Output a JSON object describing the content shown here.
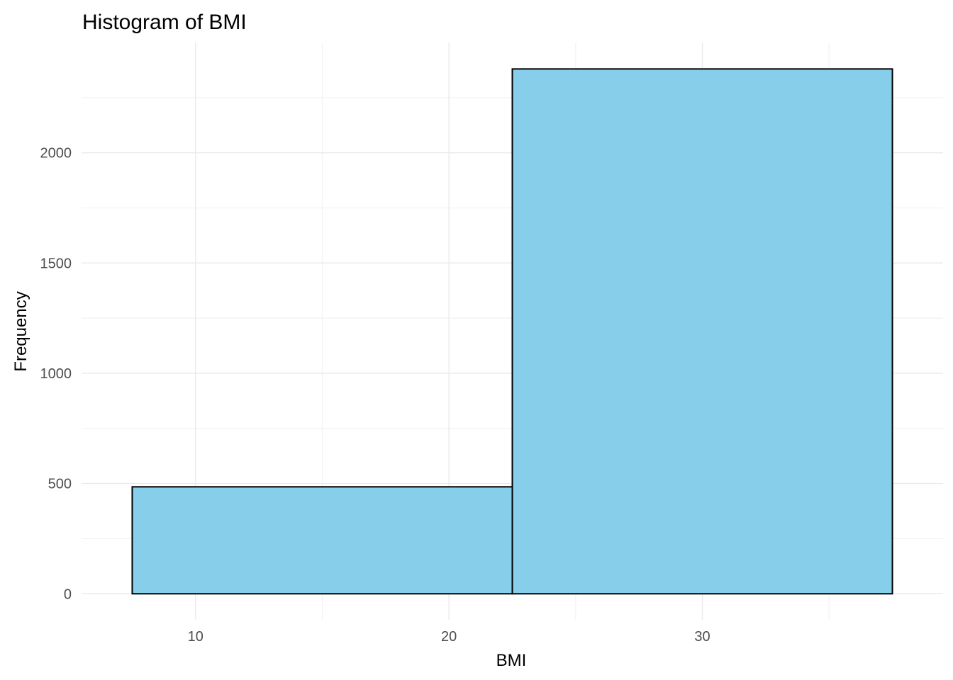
{
  "chart_data": {
    "type": "bar",
    "title": "Histogram of BMI",
    "xlabel": "BMI",
    "ylabel": "Frequency",
    "bins": [
      {
        "x_start": 7.5,
        "x_end": 22.5,
        "count": 485
      },
      {
        "x_start": 22.5,
        "x_end": 37.5,
        "count": 2380
      }
    ],
    "xlim": [
      5.5,
      39.5
    ],
    "ylim": [
      -118,
      2500
    ],
    "x_major_ticks": [
      10,
      20,
      30
    ],
    "x_tick_labels": [
      "10",
      "20",
      "30"
    ],
    "x_minor_ticks": [
      15,
      25,
      35
    ],
    "y_major_ticks": [
      0,
      500,
      1000,
      1500,
      2000
    ],
    "y_tick_labels": [
      "0",
      "500",
      "1000",
      "1500",
      "2000"
    ],
    "y_minor_ticks": [
      250,
      750,
      1250,
      1750,
      2250
    ],
    "grid": true,
    "legend": "none",
    "colors": {
      "bar_fill": "#87CEEB",
      "bar_outline": "#000000",
      "grid_major": "#ebebeb",
      "grid_minor": "#f2f2f2",
      "tick_text": "#4d4d4d",
      "title_text": "#000000"
    }
  }
}
